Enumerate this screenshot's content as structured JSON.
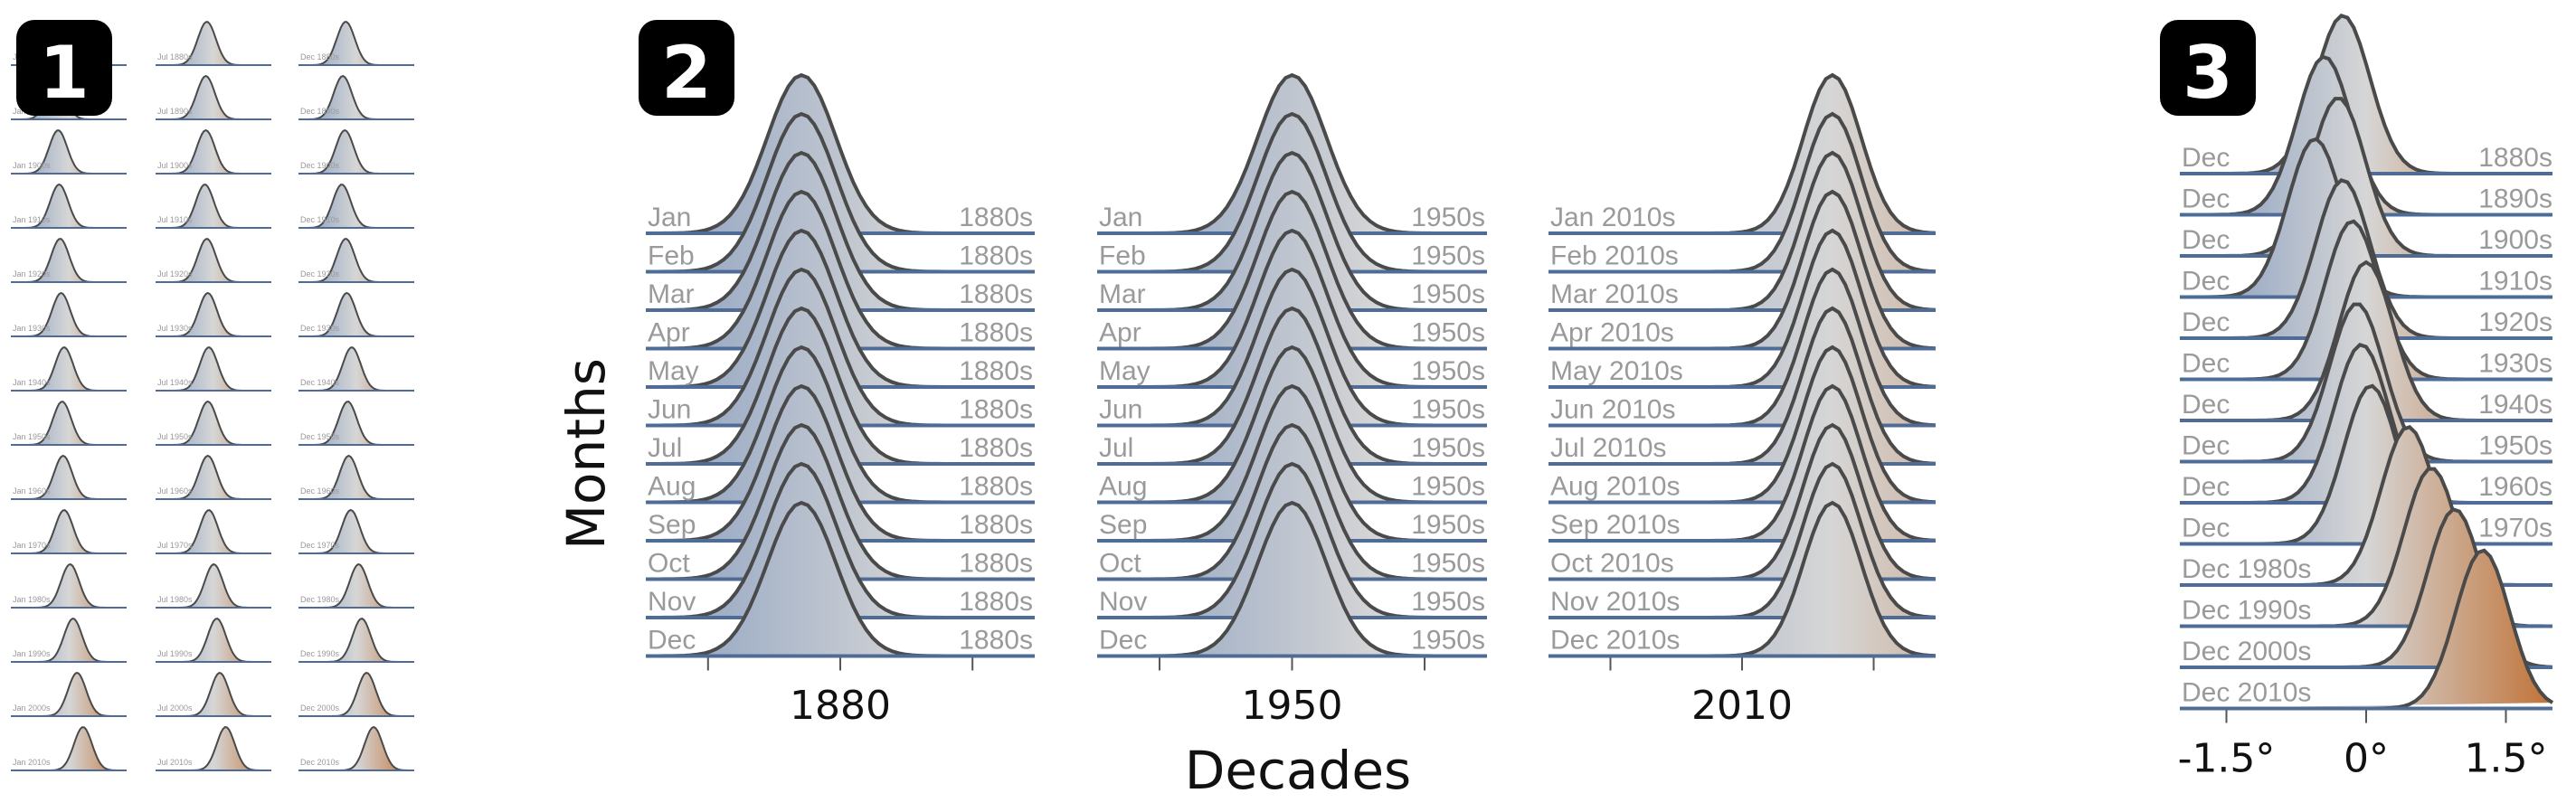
{
  "colors": {
    "cool": "#7f97bd",
    "mid": "#d6d6d6",
    "warm": "#c07236",
    "outline": "#4a4a4a",
    "baseline": "#4f6c96",
    "label": "#9a9a9a"
  },
  "chart_data": [
    {
      "panel": "1",
      "type": "ridgeline",
      "description_values_unit": "density curves of temperature anomalies, peak position in degrees",
      "columns": [
        {
          "month": "Jan",
          "decades": [
            "1880s",
            "1890s",
            "1900s",
            "1910s",
            "1920s",
            "1930s",
            "1940s",
            "1950s",
            "1960s",
            "1970s",
            "1980s",
            "1990s",
            "2000s",
            "2010s"
          ],
          "peaks": [
            -0.4,
            -0.4,
            -0.3,
            -0.25,
            -0.2,
            -0.15,
            0.0,
            -0.1,
            -0.05,
            0.0,
            0.3,
            0.45,
            0.65,
            0.95
          ]
        },
        {
          "month": "Jul",
          "decades": [
            "1880s",
            "1890s",
            "1900s",
            "1910s",
            "1920s",
            "1930s",
            "1940s",
            "1950s",
            "1960s",
            "1970s",
            "1980s",
            "1990s",
            "2000s",
            "2010s"
          ],
          "peaks": [
            -0.1,
            -0.15,
            -0.15,
            -0.2,
            -0.1,
            -0.05,
            0.0,
            -0.05,
            -0.05,
            0.0,
            0.25,
            0.4,
            0.55,
            0.85
          ]
        },
        {
          "month": "Dec",
          "decades": [
            "1880s",
            "1890s",
            "1900s",
            "1910s",
            "1920s",
            "1930s",
            "1940s",
            "1950s",
            "1960s",
            "1970s",
            "1980s",
            "1990s",
            "2000s",
            "2010s"
          ],
          "peaks": [
            -0.3,
            -0.45,
            -0.35,
            -0.5,
            -0.3,
            -0.25,
            0.0,
            -0.2,
            -0.15,
            -0.05,
            0.35,
            0.5,
            0.75,
            1.1
          ]
        }
      ]
    },
    {
      "panel": "2",
      "type": "ridgeline",
      "ylabel": "Months",
      "xlabel": "Decades",
      "groups": [
        {
          "decade": "1880",
          "tick_label": "1880",
          "months": [
            "Jan",
            "Feb",
            "Mar",
            "Apr",
            "May",
            "Jun",
            "Jul",
            "Aug",
            "Sep",
            "Oct",
            "Nov",
            "Dec"
          ],
          "row_decade_label": "1880s",
          "peak": -0.45
        },
        {
          "decade": "1950",
          "tick_label": "1950",
          "months": [
            "Jan",
            "Feb",
            "Mar",
            "Apr",
            "May",
            "Jun",
            "Jul",
            "Aug",
            "Sep",
            "Oct",
            "Nov",
            "Dec"
          ],
          "row_decade_label": "1950s",
          "peak": 0.0
        },
        {
          "decade": "2010",
          "tick_label": "2010",
          "months": [
            "Jan 2010s",
            "Feb 2010s",
            "Mar 2010s",
            "Apr 2010s",
            "May 2010s",
            "Jun 2010s",
            "Jul 2010s",
            "Aug 2010s",
            "Sep 2010s",
            "Oct 2010s",
            "Nov 2010s",
            "Dec 2010s"
          ],
          "row_decade_label": "",
          "peak": 1.05
        }
      ]
    },
    {
      "panel": "3",
      "type": "ridgeline",
      "month": "Dec",
      "right_labels": [
        "1880s",
        "1890s",
        "1900s",
        "1910s",
        "1920s",
        "1930s",
        "1940s",
        "1950s",
        "1960s",
        "1970s",
        "",
        "",
        "",
        ""
      ],
      "left_labels": [
        "Dec",
        "Dec",
        "Dec",
        "Dec",
        "Dec",
        "Dec",
        "Dec",
        "Dec",
        "Dec",
        "Dec",
        "Dec 1980s",
        "Dec 1990s",
        "Dec 2000s",
        "Dec 2010s"
      ],
      "peaks": [
        -0.25,
        -0.45,
        -0.3,
        -0.55,
        -0.25,
        -0.15,
        0.0,
        -0.1,
        -0.05,
        0.05,
        0.45,
        0.7,
        0.95,
        1.25
      ],
      "xticks": [
        -1.5,
        0,
        1.5
      ],
      "xtick_labels": [
        "-1.5°",
        "0°",
        "1.5°"
      ],
      "xlim": [
        -2.0,
        2.0
      ]
    }
  ],
  "badges": [
    "1",
    "2",
    "3"
  ]
}
